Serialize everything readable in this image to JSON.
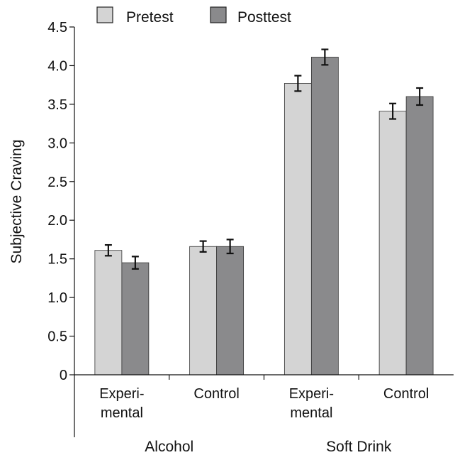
{
  "chart_data": {
    "type": "bar",
    "ylabel": "Subjective Craving",
    "ylim": [
      0,
      4.5
    ],
    "yticks": [
      "0",
      "0.5",
      "1.0",
      "1.5",
      "2.0",
      "2.5",
      "3.0",
      "3.5",
      "4.0",
      "4.5"
    ],
    "ytick_values": [
      0,
      0.5,
      1.0,
      1.5,
      2.0,
      2.5,
      3.0,
      3.5,
      4.0,
      4.5
    ],
    "grid": false,
    "legend_position": "top",
    "groups": [
      {
        "label": "Alcohol",
        "categories": [
          "Experi-\nmental",
          "Control"
        ]
      },
      {
        "label": "Soft Drink",
        "categories": [
          "Experi-\nmental",
          "Control"
        ]
      }
    ],
    "series": [
      {
        "name": "Pretest",
        "color": "#d4d4d4",
        "values": [
          1.61,
          1.66,
          3.77,
          3.41
        ],
        "errors": [
          0.07,
          0.07,
          0.1,
          0.1
        ]
      },
      {
        "name": "Posttest",
        "color": "#8a8a8c",
        "values": [
          1.45,
          1.66,
          4.11,
          3.6
        ],
        "errors": [
          0.08,
          0.09,
          0.1,
          0.11
        ]
      }
    ]
  }
}
